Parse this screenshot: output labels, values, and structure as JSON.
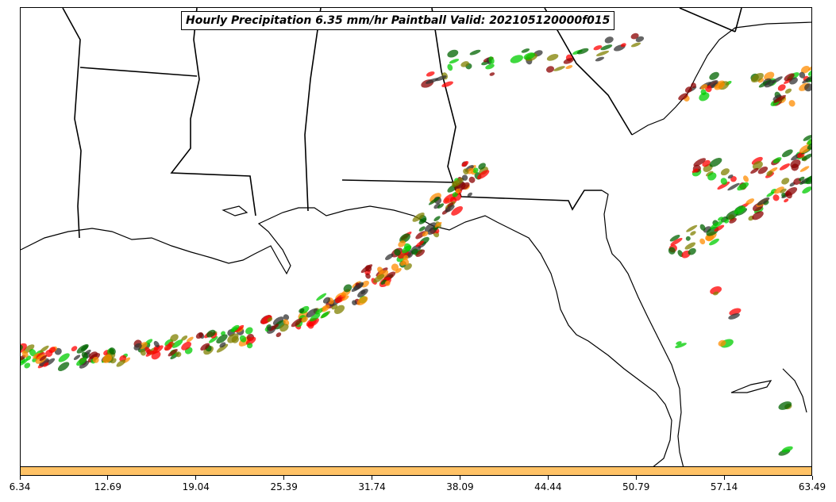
{
  "title": "Hourly Precipitation 6.35 mm/hr Paintball Valid: 202105120000f015",
  "colorbar": {
    "color": "#ffc266",
    "tick_labels": [
      "6.34",
      "12.69",
      "19.04",
      "25.39",
      "31.74",
      "38.09",
      "44.44",
      "50.79",
      "57.14",
      "63.49"
    ]
  },
  "map": {
    "region": "US Gulf Coast and Southeast",
    "paint_colors": [
      "#ff0000",
      "#ff8c00",
      "#808000",
      "#00cc00",
      "#006400",
      "#8b0000",
      "#333333"
    ],
    "land_color": "#ffffff",
    "outline_color": "#000000"
  }
}
